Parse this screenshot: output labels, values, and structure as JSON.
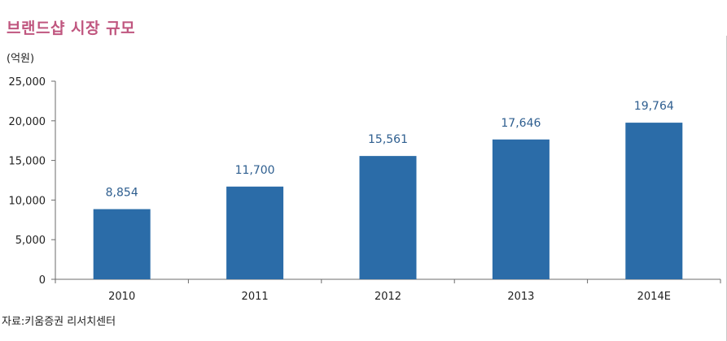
{
  "title": "브랜드샵 시장 규모",
  "unit_label": "(억원)",
  "source": "자료:키움증권 리서치센터",
  "colors": {
    "bar": "#2b6ca8",
    "title": "#c0567f",
    "axis": "#6b6b6b",
    "label": "#2e5e8f"
  },
  "chart_data": {
    "type": "bar",
    "title": "브랜드샵 시장 규모",
    "ylabel": "(억원)",
    "xlabel": "",
    "categories": [
      "2010",
      "2011",
      "2012",
      "2013",
      "2014E"
    ],
    "values": [
      8854,
      11700,
      15561,
      17646,
      19764
    ],
    "value_labels": [
      "8,854",
      "11,700",
      "15,561",
      "17,646",
      "19,764"
    ],
    "ylim": [
      0,
      25000
    ],
    "yticks": [
      0,
      5000,
      10000,
      15000,
      20000,
      25000
    ],
    "ytick_labels": [
      "0",
      "5,000",
      "10,000",
      "15,000",
      "20,000",
      "25,000"
    ],
    "grid": false,
    "legend": "none",
    "source": "자료:키움증권 리서치센터"
  }
}
